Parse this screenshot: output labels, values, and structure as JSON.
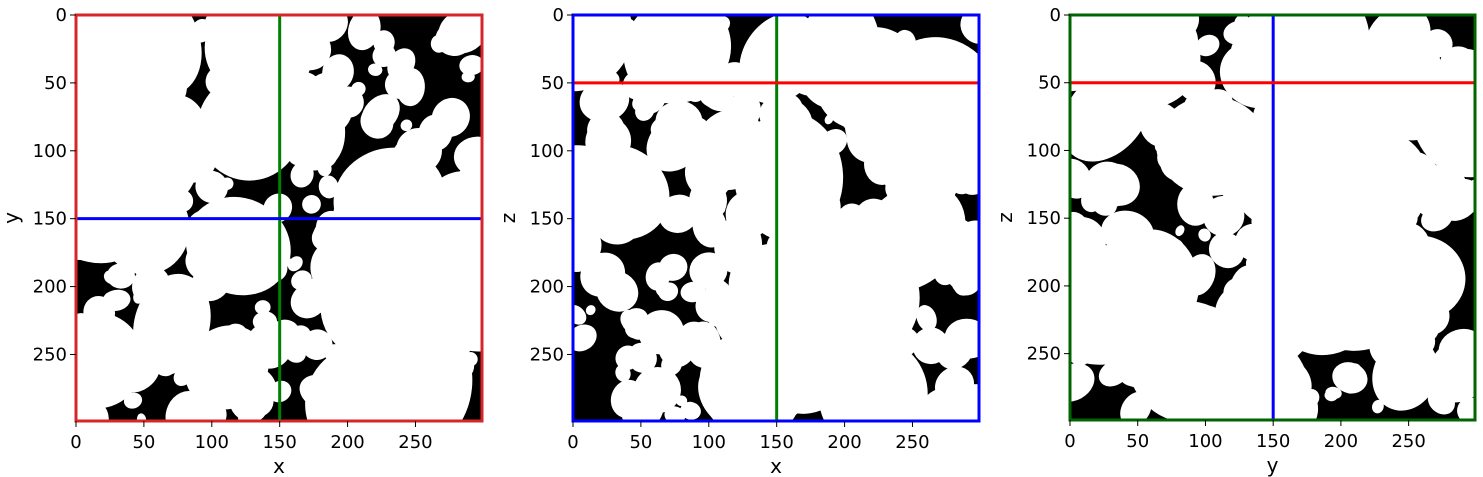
{
  "chart_data": [
    {
      "type": "heatmap",
      "title": "",
      "xlabel": "x",
      "ylabel": "y",
      "xlim": [
        0,
        299
      ],
      "ylim": [
        299,
        0
      ],
      "xticks": [
        "0",
        "50",
        "100",
        "150",
        "200",
        "250"
      ],
      "yticks": [
        "0",
        "50",
        "100",
        "150",
        "200",
        "250"
      ],
      "frame_color": "#d62728",
      "crosshairs": [
        {
          "orientation": "vertical",
          "value": 150,
          "color": "#008000"
        },
        {
          "orientation": "horizontal",
          "value": 150,
          "color": "#0000ff"
        }
      ],
      "colormap": "binary (black pore / white grain)"
    },
    {
      "type": "heatmap",
      "title": "",
      "xlabel": "x",
      "ylabel": "z",
      "xlim": [
        0,
        299
      ],
      "ylim": [
        299,
        0
      ],
      "xticks": [
        "0",
        "50",
        "100",
        "150",
        "200",
        "250"
      ],
      "yticks": [
        "0",
        "50",
        "100",
        "150",
        "200",
        "250"
      ],
      "frame_color": "#0000ff",
      "crosshairs": [
        {
          "orientation": "vertical",
          "value": 150,
          "color": "#008000"
        },
        {
          "orientation": "horizontal",
          "value": 50,
          "color": "#ff0000"
        }
      ],
      "colormap": "binary (black pore / white grain)"
    },
    {
      "type": "heatmap",
      "title": "",
      "xlabel": "y",
      "ylabel": "z",
      "xlim": [
        0,
        299
      ],
      "ylim": [
        299,
        0
      ],
      "xticks": [
        "0",
        "50",
        "100",
        "150",
        "200",
        "250"
      ],
      "yticks": [
        "0",
        "50",
        "100",
        "150",
        "200",
        "250"
      ],
      "frame_color": "#006400",
      "crosshairs": [
        {
          "orientation": "vertical",
          "value": 150,
          "color": "#0000ff"
        },
        {
          "orientation": "horizontal",
          "value": 50,
          "color": "#ff0000"
        }
      ],
      "colormap": "binary (black pore / white grain)"
    }
  ]
}
